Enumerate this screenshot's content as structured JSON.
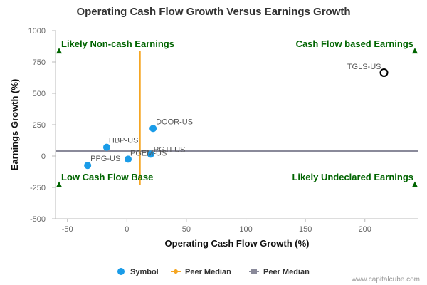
{
  "chart_data": {
    "type": "scatter",
    "title": "Operating Cash Flow Growth Versus Earnings Growth",
    "xlabel": "Operating Cash Flow Growth (%)",
    "ylabel": "Earnings Growth (%)",
    "xlim": [
      -60,
      245
    ],
    "ylim": [
      -500,
      1000
    ],
    "xticks": [
      -50,
      0,
      50,
      100,
      150,
      200
    ],
    "yticks": [
      -500,
      -250,
      0,
      250,
      500,
      750,
      1000
    ],
    "grid": false,
    "legend_position": "bottom-center",
    "points": [
      {
        "label": "DOOR-US",
        "x": 22,
        "y": 220,
        "highlight": false
      },
      {
        "label": "HBP-US",
        "x": -17,
        "y": 70,
        "highlight": false
      },
      {
        "label": "PGTI-US",
        "x": 20,
        "y": 15,
        "highlight": false
      },
      {
        "label": "PGEM-US",
        "x": 1,
        "y": -25,
        "highlight": false
      },
      {
        "label": "PPG-US",
        "x": -33,
        "y": -75,
        "highlight": false
      },
      {
        "label": "TGLS-US",
        "x": 216,
        "y": 665,
        "highlight": true
      }
    ],
    "peer_median_x": 11,
    "peer_median_x_y_range": [
      -230,
      840
    ],
    "peer_median_y": 40,
    "quadrant_labels": {
      "top_left": "Likely Non-cash Earnings",
      "top_right": "Cash Flow based Earnings",
      "bottom_left": "Low Cash Flow Base",
      "bottom_right": "Likely Undeclared Earnings"
    },
    "quadrant_marker_y": {
      "top": 840,
      "bottom": -225
    },
    "legend": [
      {
        "name": "Symbol",
        "color": "#1a9ce8",
        "marker": "circle"
      },
      {
        "name": "Peer Median",
        "color": "#f5a623",
        "marker": "diamond"
      },
      {
        "name": "Peer Median",
        "color": "#8a8a9a",
        "marker": "square"
      }
    ],
    "colors": {
      "point": "#1a9ce8",
      "highlight_stroke": "#000000",
      "median_x_line": "#f5a623",
      "median_y_line": "#8a8a9a",
      "quadrant_text": "#006400",
      "axis": "#bbbbbb"
    }
  },
  "credit": "www.capitalcube.com"
}
